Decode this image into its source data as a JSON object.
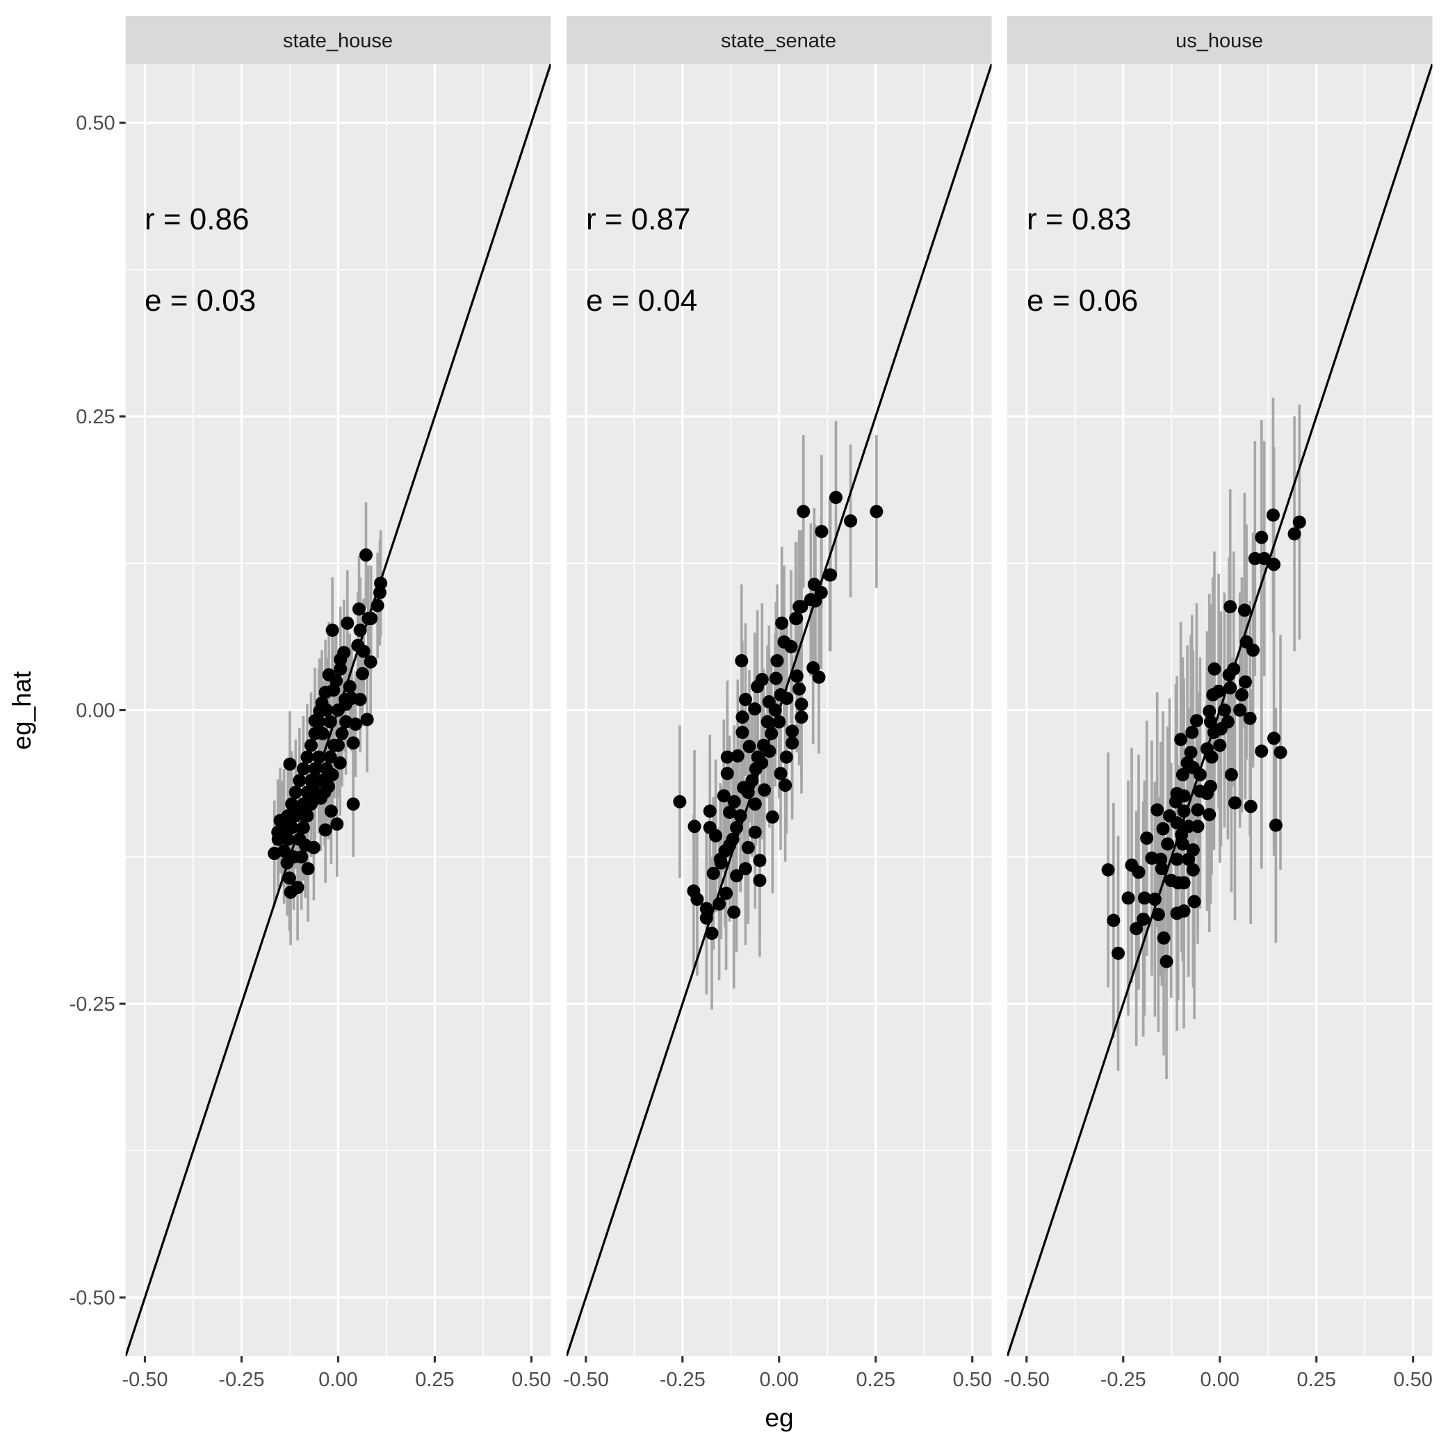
{
  "figure": {
    "x_axis_title": "eg",
    "y_axis_title": "eg_hat"
  },
  "panels": [
    {
      "strip": "state_house",
      "r_label": "r = 0.86",
      "e_label": "e = 0.03"
    },
    {
      "strip": "state_senate",
      "r_label": "r = 0.87",
      "e_label": "e = 0.04"
    },
    {
      "strip": "us_house",
      "r_label": "r = 0.83",
      "e_label": "e = 0.06"
    }
  ],
  "colors": {
    "panel_background": "#EBEBEB",
    "strip_background": "#D9D9D9",
    "gridlines": "#FFFFFF",
    "points": "#000000",
    "error_bars": "#A6A6A6",
    "identity_line": "#000000"
  },
  "chart_data": {
    "type": "scatter",
    "title": "",
    "xlabel": "eg",
    "ylabel": "eg_hat",
    "facets": [
      "state_house",
      "state_senate",
      "us_house"
    ],
    "xlim": [
      -0.55,
      0.55
    ],
    "ylim": [
      -0.55,
      0.55
    ],
    "x_ticks": [
      -0.5,
      -0.25,
      0.0,
      0.25,
      0.5
    ],
    "x_tick_labels": [
      "-0.50",
      "-0.25",
      "0.00",
      "0.25",
      "0.50"
    ],
    "y_ticks": [
      -0.5,
      -0.25,
      0.0,
      0.25,
      0.5
    ],
    "y_tick_labels": [
      "-0.50",
      "-0.25",
      "0.00",
      "0.25",
      "0.50"
    ],
    "grid": true,
    "legend": "none",
    "reference_line": {
      "type": "identity",
      "slope": 1,
      "intercept": 0
    },
    "annotations": [
      {
        "facet": "state_house",
        "r": 0.86,
        "e": 0.03
      },
      {
        "facet": "state_senate",
        "r": 0.87,
        "e": 0.04
      },
      {
        "facet": "us_house",
        "r": 0.83,
        "e": 0.06
      }
    ],
    "series": [
      {
        "name": "state_house",
        "error_halfwidth": 0.045,
        "points": [
          [
            0.072,
            0.132
          ],
          [
            0.102,
            0.089
          ],
          [
            0.108,
            0.1
          ],
          [
            0.11,
            0.108
          ],
          [
            0.085,
            0.078
          ],
          [
            0.078,
            0.078
          ],
          [
            0.054,
            0.086
          ],
          [
            0.024,
            0.074
          ],
          [
            -0.015,
            0.068
          ],
          [
            0.057,
            0.068
          ],
          [
            0.051,
            0.055
          ],
          [
            0.066,
            0.05
          ],
          [
            0.084,
            0.041
          ],
          [
            0.015,
            0.049
          ],
          [
            0.006,
            0.043
          ],
          [
            0.006,
            0.035
          ],
          [
            0.063,
            0.031
          ],
          [
            -0.024,
            0.03
          ],
          [
            -0.033,
            0.015
          ],
          [
            0.057,
            0.009
          ],
          [
            -0.042,
            0.006
          ],
          [
            -0.048,
            -0.001
          ],
          [
            -0.06,
            -0.009
          ],
          [
            0.075,
            -0.008
          ],
          [
            0.045,
            -0.012
          ],
          [
            0.018,
            0.009
          ],
          [
            -0.012,
            0.017
          ],
          [
            0.039,
            -0.028
          ],
          [
            -0.125,
            -0.046
          ],
          [
            0.039,
            -0.08
          ],
          [
            -0.003,
            -0.097
          ],
          [
            -0.063,
            -0.117
          ],
          [
            -0.165,
            -0.122
          ],
          [
            -0.078,
            -0.135
          ],
          [
            -0.126,
            -0.143
          ],
          [
            -0.123,
            -0.155
          ],
          [
            -0.105,
            -0.151
          ],
          [
            -0.132,
            -0.13
          ],
          [
            -0.018,
            -0.086
          ],
          [
            -0.033,
            -0.102
          ],
          [
            -0.15,
            -0.094
          ],
          [
            -0.156,
            -0.104
          ],
          [
            -0.03,
            0.0
          ],
          [
            -0.02,
            -0.01
          ],
          [
            0.0,
            0.0
          ],
          [
            0.01,
            -0.02
          ],
          [
            -0.01,
            -0.03
          ],
          [
            -0.04,
            -0.02
          ],
          [
            -0.05,
            -0.04
          ],
          [
            -0.06,
            -0.05
          ],
          [
            -0.07,
            -0.06
          ],
          [
            -0.08,
            -0.07
          ],
          [
            -0.09,
            -0.08
          ],
          [
            -0.1,
            -0.085
          ],
          [
            -0.11,
            -0.09
          ],
          [
            -0.12,
            -0.1
          ],
          [
            -0.13,
            -0.11
          ],
          [
            -0.14,
            -0.095
          ],
          [
            -0.1,
            -0.06
          ],
          [
            -0.09,
            -0.05
          ],
          [
            -0.08,
            -0.04
          ],
          [
            -0.07,
            -0.03
          ],
          [
            -0.06,
            -0.02
          ],
          [
            -0.05,
            -0.01
          ],
          [
            -0.04,
            -0.06
          ],
          [
            -0.03,
            -0.05
          ],
          [
            -0.02,
            -0.04
          ],
          [
            0.0,
            -0.03
          ],
          [
            0.02,
            -0.01
          ],
          [
            0.03,
            0.02
          ],
          [
            -0.11,
            -0.07
          ],
          [
            -0.12,
            -0.08
          ],
          [
            -0.13,
            -0.09
          ],
          [
            -0.14,
            -0.12
          ],
          [
            -0.1,
            -0.11
          ],
          [
            -0.09,
            -0.1
          ],
          [
            -0.08,
            -0.09
          ],
          [
            -0.07,
            -0.08
          ],
          [
            -0.06,
            -0.07
          ],
          [
            -0.05,
            -0.06
          ],
          [
            -0.045,
            -0.075
          ],
          [
            -0.035,
            -0.07
          ],
          [
            -0.025,
            -0.065
          ],
          [
            -0.015,
            -0.055
          ],
          [
            0.005,
            -0.045
          ],
          [
            0.02,
            0.005
          ],
          [
            0.035,
            0.01
          ],
          [
            -0.005,
            0.025
          ],
          [
            -0.115,
            -0.125
          ],
          [
            -0.095,
            -0.125
          ],
          [
            -0.085,
            -0.115
          ],
          [
            -0.145,
            -0.105
          ],
          [
            -0.155,
            -0.11
          ]
        ]
      },
      {
        "name": "state_senate",
        "error_halfwidth": 0.065,
        "points": [
          [
            0.063,
            0.169
          ],
          [
            0.147,
            0.181
          ],
          [
            0.252,
            0.169
          ],
          [
            0.185,
            0.161
          ],
          [
            0.11,
            0.152
          ],
          [
            0.133,
            0.115
          ],
          [
            0.131,
            0.115
          ],
          [
            0.091,
            0.107
          ],
          [
            0.109,
            0.1
          ],
          [
            0.082,
            0.094
          ],
          [
            0.052,
            0.088
          ],
          [
            0.043,
            0.078
          ],
          [
            0.007,
            0.074
          ],
          [
            0.094,
            0.093
          ],
          [
            0.058,
            0.088
          ],
          [
            0.045,
            0.078
          ],
          [
            0.013,
            0.058
          ],
          [
            0.031,
            0.054
          ],
          [
            -0.097,
            0.042
          ],
          [
            -0.005,
            0.042
          ],
          [
            0.088,
            0.036
          ],
          [
            0.103,
            0.028
          ],
          [
            -0.044,
            0.026
          ],
          [
            -0.008,
            0.027
          ],
          [
            0.046,
            0.029
          ],
          [
            0.052,
            0.018
          ],
          [
            -0.056,
            0.02
          ],
          [
            -0.087,
            0.009
          ],
          [
            -0.063,
            0.001
          ],
          [
            0.058,
            0.005
          ],
          [
            0.058,
            -0.006
          ],
          [
            -0.095,
            -0.006
          ],
          [
            -0.095,
            -0.019
          ],
          [
            0.034,
            -0.018
          ],
          [
            0.034,
            -0.028
          ],
          [
            0.019,
            -0.04
          ],
          [
            -0.077,
            -0.031
          ],
          [
            -0.107,
            -0.039
          ],
          [
            -0.134,
            -0.04
          ],
          [
            0.004,
            -0.054
          ],
          [
            -0.026,
            0.007
          ],
          [
            0.004,
            0.013
          ],
          [
            -0.257,
            -0.078
          ],
          [
            -0.179,
            -0.086
          ],
          [
            -0.219,
            -0.099
          ],
          [
            -0.179,
            -0.1
          ],
          [
            -0.143,
            -0.073
          ],
          [
            -0.128,
            -0.087
          ],
          [
            -0.164,
            -0.107
          ],
          [
            -0.08,
            -0.117
          ],
          [
            -0.05,
            -0.128
          ],
          [
            -0.087,
            -0.135
          ],
          [
            -0.05,
            -0.145
          ],
          [
            -0.221,
            -0.154
          ],
          [
            -0.212,
            -0.161
          ],
          [
            -0.188,
            -0.169
          ],
          [
            -0.188,
            -0.177
          ],
          [
            -0.117,
            -0.172
          ],
          [
            -0.174,
            -0.19
          ],
          [
            -0.155,
            -0.165
          ],
          [
            -0.137,
            -0.156
          ],
          [
            -0.152,
            -0.127
          ],
          [
            -0.128,
            -0.115
          ],
          [
            -0.11,
            -0.141
          ],
          [
            -0.17,
            -0.139
          ],
          [
            -0.134,
            -0.054
          ],
          [
            0.016,
            -0.064
          ],
          [
            -0.017,
            -0.091
          ],
          [
            -0.062,
            -0.104
          ],
          [
            -0.062,
            -0.08
          ],
          [
            -0.092,
            -0.066
          ],
          [
            -0.038,
            -0.068
          ],
          [
            -0.116,
            -0.078
          ],
          [
            -0.02,
            -0.02
          ],
          [
            -0.03,
            -0.01
          ],
          [
            -0.04,
            -0.03
          ],
          [
            -0.06,
            -0.05
          ],
          [
            -0.07,
            -0.06
          ],
          [
            -0.08,
            -0.07
          ],
          [
            -0.1,
            -0.09
          ],
          [
            -0.11,
            -0.1
          ],
          [
            -0.12,
            -0.11
          ],
          [
            -0.14,
            -0.12
          ],
          [
            -0.15,
            -0.13
          ],
          [
            -0.01,
            0.0
          ],
          [
            0.0,
            -0.01
          ],
          [
            0.02,
            0.01
          ],
          [
            -0.045,
            -0.045
          ],
          [
            -0.055,
            -0.04
          ],
          [
            -0.025,
            -0.035
          ]
        ]
      },
      {
        "name": "us_house",
        "error_halfwidth": 0.1,
        "points": [
          [
            0.138,
            0.166
          ],
          [
            0.206,
            0.16
          ],
          [
            0.193,
            0.15
          ],
          [
            0.108,
            0.147
          ],
          [
            0.091,
            0.129
          ],
          [
            0.115,
            0.129
          ],
          [
            0.14,
            0.124
          ],
          [
            0.027,
            0.088
          ],
          [
            0.064,
            0.085
          ],
          [
            0.069,
            0.058
          ],
          [
            0.086,
            0.051
          ],
          [
            0.108,
            -0.035
          ],
          [
            0.14,
            -0.024
          ],
          [
            0.157,
            -0.036
          ],
          [
            0.145,
            -0.098
          ],
          [
            0.08,
            -0.082
          ],
          [
            -0.014,
            0.035
          ],
          [
            0.036,
            0.035
          ],
          [
            0.024,
            0.03
          ],
          [
            0.066,
            0.024
          ],
          [
            0.027,
            0.019
          ],
          [
            -0.003,
            0.016
          ],
          [
            -0.018,
            0.013
          ],
          [
            0.057,
            0.013
          ],
          [
            -0.027,
            -0.001
          ],
          [
            0.012,
            0.0
          ],
          [
            0.052,
            0.0
          ],
          [
            0.078,
            -0.007
          ],
          [
            -0.06,
            -0.009
          ],
          [
            -0.024,
            -0.01
          ],
          [
            0.021,
            -0.01
          ],
          [
            -0.072,
            -0.019
          ],
          [
            -0.015,
            -0.019
          ],
          [
            0.003,
            -0.016
          ],
          [
            -0.101,
            -0.025
          ],
          [
            0.0,
            -0.03
          ],
          [
            -0.033,
            -0.033
          ],
          [
            -0.075,
            -0.036
          ],
          [
            -0.021,
            -0.04
          ],
          [
            -0.084,
            -0.045
          ],
          [
            0.03,
            -0.055
          ],
          [
            -0.289,
            -0.136
          ],
          [
            -0.275,
            -0.179
          ],
          [
            -0.263,
            -0.207
          ],
          [
            -0.228,
            -0.132
          ],
          [
            -0.21,
            -0.138
          ],
          [
            -0.237,
            -0.16
          ],
          [
            -0.189,
            -0.109
          ],
          [
            -0.162,
            -0.085
          ],
          [
            -0.176,
            -0.126
          ],
          [
            -0.195,
            -0.16
          ],
          [
            -0.168,
            -0.161
          ],
          [
            -0.198,
            -0.178
          ],
          [
            -0.216,
            -0.186
          ],
          [
            -0.159,
            -0.174
          ],
          [
            -0.145,
            -0.194
          ],
          [
            -0.138,
            -0.214
          ],
          [
            -0.147,
            -0.101
          ],
          [
            -0.13,
            -0.09
          ],
          [
            -0.135,
            -0.114
          ],
          [
            -0.153,
            -0.127
          ],
          [
            -0.15,
            -0.135
          ],
          [
            -0.126,
            -0.145
          ],
          [
            -0.108,
            -0.147
          ],
          [
            -0.093,
            -0.147
          ],
          [
            -0.111,
            -0.173
          ],
          [
            -0.093,
            -0.171
          ],
          [
            -0.066,
            -0.163
          ],
          [
            -0.069,
            -0.136
          ],
          [
            -0.111,
            -0.127
          ],
          [
            -0.081,
            -0.127
          ],
          [
            -0.069,
            -0.119
          ],
          [
            -0.096,
            -0.114
          ],
          [
            -0.099,
            -0.106
          ],
          [
            -0.081,
            -0.099
          ],
          [
            -0.057,
            -0.099
          ],
          [
            -0.111,
            -0.096
          ],
          [
            -0.114,
            -0.078
          ],
          [
            -0.093,
            -0.086
          ],
          [
            -0.111,
            -0.071
          ],
          [
            -0.093,
            -0.073
          ],
          [
            -0.057,
            -0.085
          ],
          [
            -0.027,
            -0.089
          ],
          [
            -0.051,
            -0.069
          ],
          [
            -0.033,
            -0.071
          ],
          [
            -0.024,
            -0.065
          ],
          [
            -0.096,
            -0.055
          ],
          [
            -0.051,
            -0.055
          ],
          [
            -0.069,
            -0.049
          ],
          [
            0.039,
            -0.079
          ]
        ]
      }
    ]
  }
}
